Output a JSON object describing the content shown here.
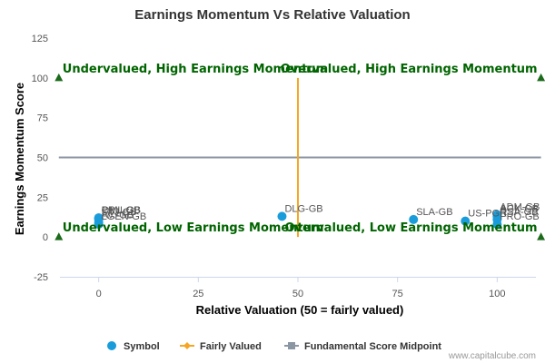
{
  "chart_data": {
    "type": "scatter",
    "title": "Earnings Momentum Vs Relative Valuation",
    "xlabel": "Relative Valuation (50 = fairly valued)",
    "ylabel": "Earnings Momentum Score",
    "xlim": [
      -12,
      112
    ],
    "ylim": [
      -25,
      125
    ],
    "xticks": [
      0,
      25,
      50,
      75,
      100
    ],
    "yticks": [
      -25,
      0,
      25,
      50,
      75,
      100,
      125
    ],
    "grid": false,
    "legend_position": "bottom",
    "series": [
      {
        "name": "Symbol",
        "color": "#1a9cdb",
        "points": [
          {
            "label": "OML-GB",
            "x": 0,
            "y": 12
          },
          {
            "label": "PRU-GB",
            "x": 0,
            "y": 12
          },
          {
            "label": "STJ-GB",
            "x": 0,
            "y": 11
          },
          {
            "label": "AV.-GB",
            "x": 0,
            "y": 9
          },
          {
            "label": "LGEN-GB",
            "x": 0,
            "y": 8
          },
          {
            "label": "DLG-GB",
            "x": 46,
            "y": 13
          },
          {
            "label": "SLA-GB",
            "x": 79,
            "y": 11
          },
          {
            "label": "US-PGR",
            "x": 92,
            "y": 10
          },
          {
            "label": "ADM-GB",
            "x": 100,
            "y": 14
          },
          {
            "label": "AGK-GB",
            "x": 100,
            "y": 13
          },
          {
            "label": "RSA-GB",
            "x": 100,
            "y": 11
          },
          {
            "label": "PRO-GB",
            "x": 100,
            "y": 8
          }
        ]
      },
      {
        "name": "Fairly Valued",
        "color": "#f5a623",
        "x": [
          50,
          50
        ],
        "y": [
          0,
          100
        ]
      },
      {
        "name": "Fundamental Score Midpoint",
        "color": "#8b96a3",
        "x": [
          -10,
          111
        ],
        "y": [
          50,
          50
        ]
      }
    ],
    "quadrant_markers": {
      "color": "#1b6b1b",
      "points": [
        {
          "x": -10,
          "y": 100
        },
        {
          "x": 111,
          "y": 100
        },
        {
          "x": -10,
          "y": 0
        },
        {
          "x": 111,
          "y": 0
        }
      ]
    },
    "annotations": [
      {
        "text": "Undervalued, High Earnings Momentum",
        "x": -10,
        "y": 100,
        "anchor": "start"
      },
      {
        "text": "Overvalued, High Earnings Momentum",
        "x": 111,
        "y": 100,
        "anchor": "end"
      },
      {
        "text": "Undervalued, Low Earnings Momentum",
        "x": -10,
        "y": 0,
        "anchor": "start"
      },
      {
        "text": "Overvalued, Low Earnings Momentum",
        "x": 111,
        "y": 0,
        "anchor": "end"
      }
    ],
    "credit": "www.capitalcube.com"
  }
}
